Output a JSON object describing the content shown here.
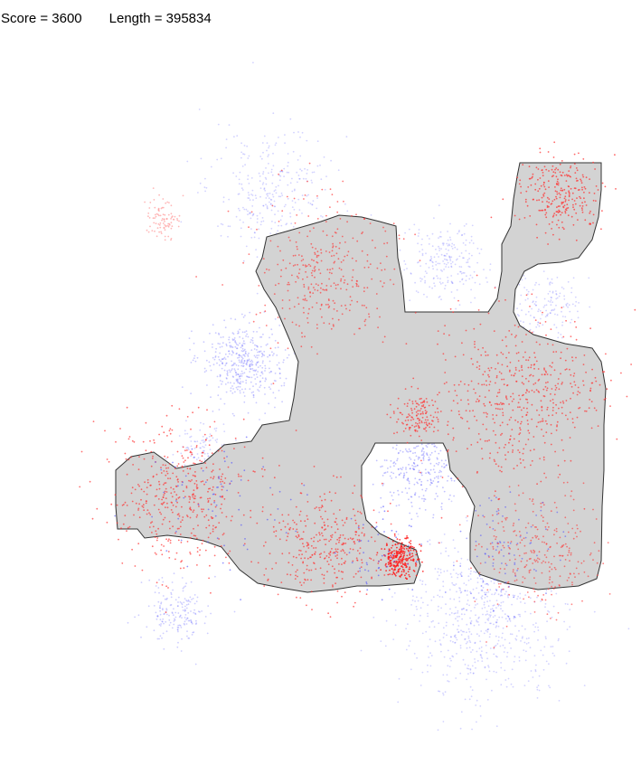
{
  "hud": {
    "score_text": "Score = 3600",
    "length_text": "Length = 395834"
  },
  "colors": {
    "background": "#ffffff",
    "region_fill": "#d3d3d3",
    "region_stroke": "#333333",
    "red_points": "#ff3333",
    "blue_points": "#5050ff",
    "text": "#000000"
  }
}
